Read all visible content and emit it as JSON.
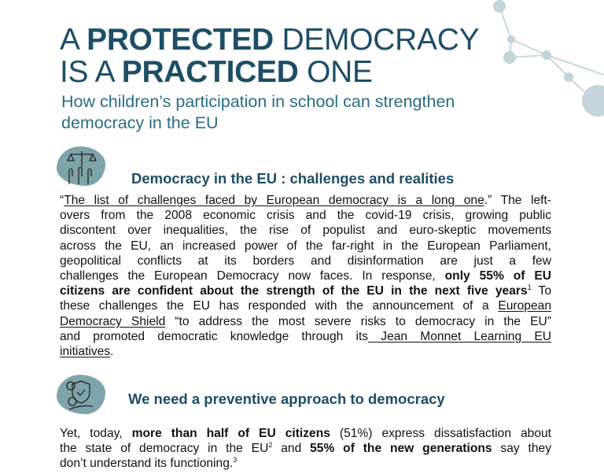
{
  "title": {
    "line1": [
      {
        "t": "A ",
        "b": false
      },
      {
        "t": "PROTECTED",
        "b": true
      },
      {
        "t": " DEMOCRACY",
        "b": false
      }
    ],
    "line2": [
      {
        "t": "IS A ",
        "b": false
      },
      {
        "t": "PRACTICED",
        "b": true
      },
      {
        "t": " ONE",
        "b": false
      }
    ]
  },
  "subtitle": "How children’s participation in school can strengthen democracy in the EU",
  "section1": {
    "icon": "scales-hands-icon",
    "heading": "Democracy in the EU : challenges and realities",
    "lines": [
      [
        {
          "t": "“"
        },
        {
          "t": "The list of challenges faced by European democracy is a long one",
          "u": true
        },
        {
          "t": ".” The left-"
        }
      ],
      [
        {
          "t": "overs from the 2008 economic crisis and the covid-19 crisis, growing public"
        }
      ],
      [
        {
          "t": "discontent over inequalities, the rise of populist and euro-skeptic movements"
        }
      ],
      [
        {
          "t": "across the EU, an increased power of the far-right in the European Parliament,"
        }
      ],
      [
        {
          "t": "geopolitical conflicts at its borders and disinformation are just a few"
        }
      ],
      [
        {
          "t": "challenges the European Democracy now faces. In response, "
        },
        {
          "t": "only 55% of EU",
          "b": true
        }
      ],
      [
        {
          "t": "citizens are confident about the strength of the EU in the next five years",
          "b": true
        },
        {
          "t": "1",
          "sup": true
        },
        {
          "t": " To"
        }
      ],
      [
        {
          "t": "these challenges the EU has responded with the announcement of a "
        },
        {
          "t": "European",
          "u": true
        }
      ],
      [
        {
          "t": "Democracy Shield",
          "u": true
        },
        {
          "t": " “to address the most severe risks to democracy in the EU”"
        }
      ],
      [
        {
          "t": "and promoted democratic knowledge through its"
        },
        {
          "t": " Jean Monnet Learning EU",
          "u": true
        }
      ],
      [
        {
          "t": "initiatives",
          "u": true
        },
        {
          "t": "."
        }
      ]
    ]
  },
  "section2": {
    "icon": "shield-gear-hand-icon",
    "heading": "We need a preventive approach to democracy",
    "lines": [
      [
        {
          "t": "Yet, today, "
        },
        {
          "t": "more than half of EU citizens",
          "b": true
        },
        {
          "t": " (51%) express dissatisfaction about"
        }
      ],
      [
        {
          "t": "the state of democracy in the EU"
        },
        {
          "t": "2",
          "sup": true
        },
        {
          "t": " and "
        },
        {
          "t": "55% of the new generations",
          "b": true
        },
        {
          "t": " say they"
        }
      ],
      [
        {
          "t": "don’t understand its functioning."
        },
        {
          "t": "3",
          "sup": true
        }
      ]
    ]
  }
}
